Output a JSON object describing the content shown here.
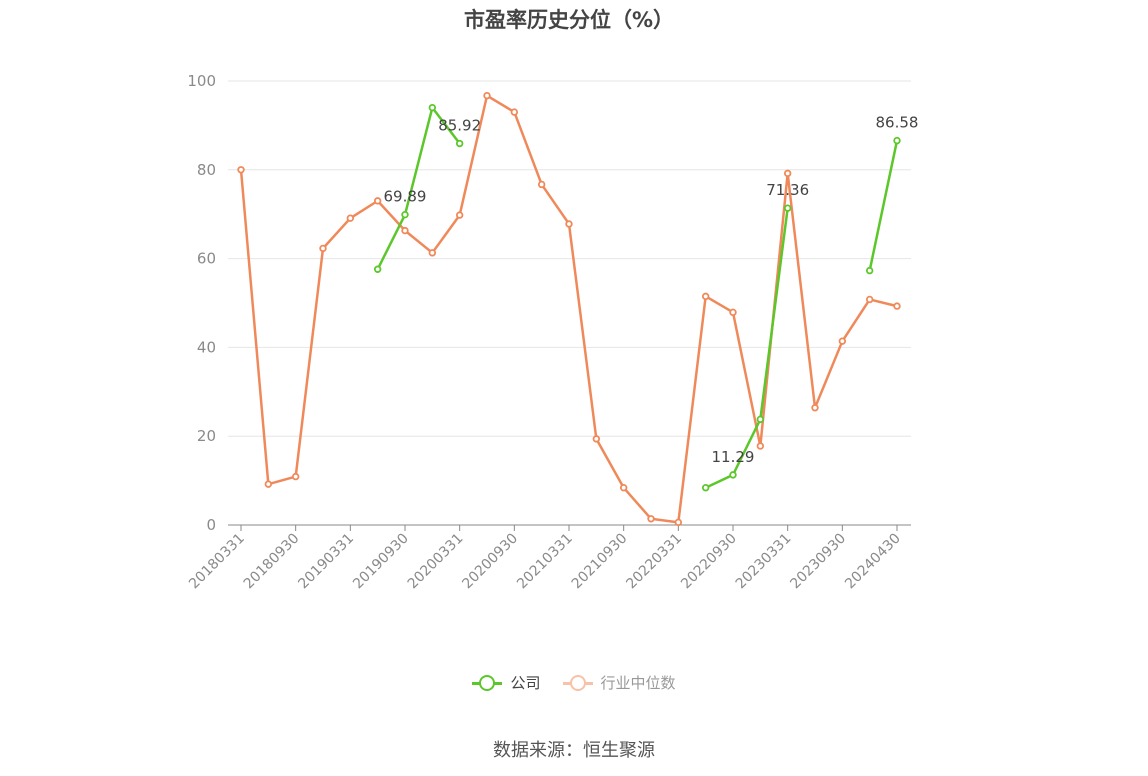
{
  "title": "市盈率历史分位（%）",
  "source": "数据来源：恒生聚源",
  "legend": {
    "company": "公司",
    "industry": "行业中位数"
  },
  "chart_data": {
    "type": "line",
    "title": "市盈率历史分位（%）",
    "ylim": [
      0,
      100
    ],
    "y_ticks": [
      "0",
      "20",
      "40",
      "60",
      "80",
      "100"
    ],
    "x": [
      "20180331",
      "20180630",
      "20180930",
      "20181231",
      "20190331",
      "20190630",
      "20190930",
      "20191231",
      "20200331",
      "20200630",
      "20200930",
      "20201231",
      "20210331",
      "20210630",
      "20210930",
      "20211231",
      "20220331",
      "20220630",
      "20220930",
      "20221231",
      "20230331",
      "20230630",
      "20230930",
      "20231231",
      "20240430"
    ],
    "x_tick_labels": [
      "20180331",
      "20180930",
      "20190331",
      "20190930",
      "20200331",
      "20200930",
      "20210331",
      "20210930",
      "20220331",
      "20220930",
      "20230331",
      "20230930",
      "20240430"
    ],
    "grid": true,
    "legend_position": "bottom",
    "series": [
      {
        "name": "公司",
        "color": "#5bc72b",
        "values": [
          null,
          null,
          null,
          null,
          null,
          57.6,
          69.89,
          94.0,
          85.92,
          null,
          null,
          null,
          null,
          null,
          null,
          null,
          null,
          8.4,
          11.29,
          23.8,
          71.36,
          null,
          null,
          57.3,
          86.58
        ],
        "labels": [
          null,
          null,
          null,
          null,
          null,
          null,
          "69.89",
          null,
          "85.92",
          null,
          null,
          null,
          null,
          null,
          null,
          null,
          null,
          null,
          "11.29",
          null,
          "71.36",
          null,
          null,
          null,
          "86.58"
        ]
      },
      {
        "name": "行业中位数",
        "color": "#f0895a",
        "values": [
          80.0,
          9.2,
          10.9,
          62.3,
          69.1,
          73.0,
          66.3,
          61.3,
          69.8,
          96.7,
          93.0,
          76.7,
          67.8,
          19.4,
          8.4,
          1.4,
          0.6,
          51.5,
          47.9,
          17.8,
          79.2,
          26.4,
          41.4,
          50.8,
          49.3
        ]
      }
    ]
  }
}
